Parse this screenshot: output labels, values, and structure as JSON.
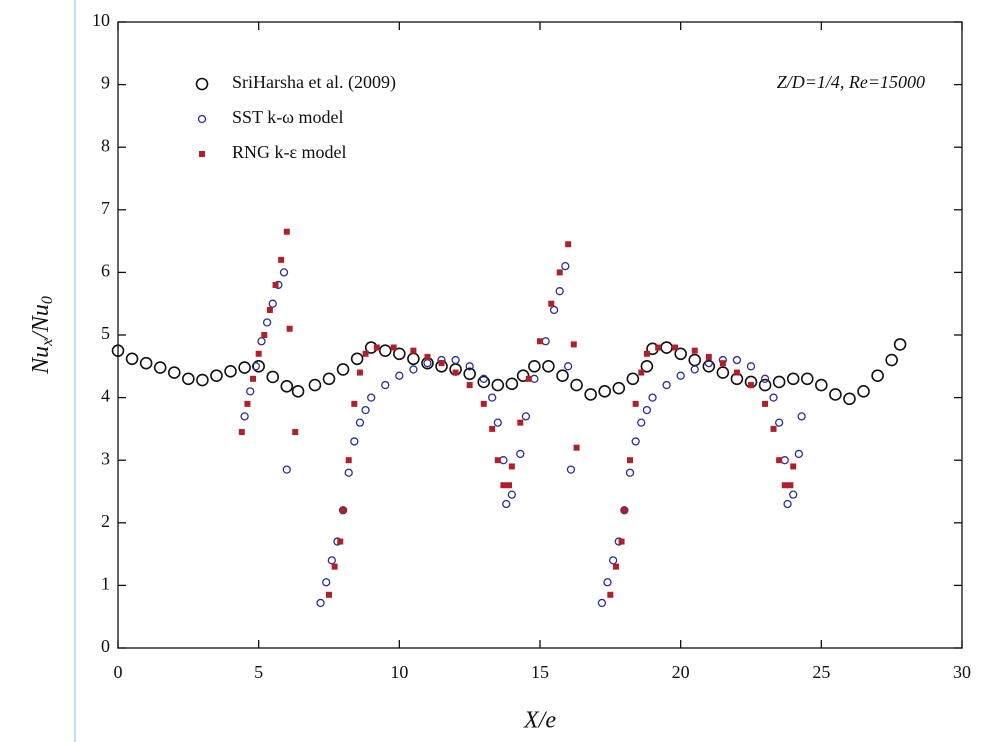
{
  "chart_data": {
    "type": "scatter",
    "annotation": "Z/D=1/4, Re=15000",
    "xlabel": "X/e",
    "ylabel_parts": [
      "Nu",
      "x",
      "/Nu",
      "0"
    ],
    "xlim": [
      0,
      30
    ],
    "ylim": [
      0,
      10
    ],
    "xticks": [
      0,
      5,
      10,
      15,
      20,
      25,
      30
    ],
    "yticks": [
      0,
      1,
      2,
      3,
      4,
      5,
      6,
      7,
      8,
      9,
      10
    ],
    "series": [
      {
        "name": "SriHarsha et al. (2009)",
        "color": "#111111",
        "marker": "circle",
        "x": [
          0,
          0.5,
          1,
          1.5,
          2,
          2.5,
          3,
          3.5,
          4,
          4.5,
          5,
          5.5,
          6,
          6.4,
          7,
          7.5,
          8,
          8.5,
          9,
          9.5,
          10,
          10.5,
          11,
          11.5,
          12,
          12.5,
          13,
          13.5,
          14,
          14.4,
          14.8,
          15.3,
          15.8,
          16.3,
          16.8,
          17.3,
          17.8,
          18.3,
          18.8,
          19,
          19.5,
          20,
          20.5,
          21,
          21.5,
          22,
          22.5,
          23,
          23.5,
          24,
          24.5,
          25,
          25.5,
          26,
          26.5,
          27,
          27.5,
          27.8
        ],
        "values": [
          4.75,
          4.62,
          4.55,
          4.48,
          4.4,
          4.3,
          4.28,
          4.35,
          4.42,
          4.48,
          4.5,
          4.33,
          4.18,
          4.1,
          4.2,
          4.3,
          4.45,
          4.62,
          4.8,
          4.75,
          4.7,
          4.62,
          4.55,
          4.5,
          4.45,
          4.38,
          4.25,
          4.2,
          4.22,
          4.35,
          4.5,
          4.5,
          4.35,
          4.2,
          4.05,
          4.1,
          4.15,
          4.3,
          4.5,
          4.78,
          4.8,
          4.7,
          4.6,
          4.5,
          4.4,
          4.3,
          4.25,
          4.2,
          4.25,
          4.3,
          4.3,
          4.2,
          4.05,
          3.98,
          4.1,
          4.35,
          4.6,
          4.85
        ]
      },
      {
        "name": "SST k-ω  model",
        "color": "#2b2f8f",
        "marker": "small-circle",
        "x": [
          4.5,
          4.7,
          4.9,
          5.1,
          5.3,
          5.5,
          5.7,
          5.9,
          6.0,
          7.2,
          7.4,
          7.6,
          7.8,
          8.0,
          8.2,
          8.4,
          8.6,
          8.8,
          9.0,
          9.5,
          10,
          10.5,
          11,
          11.5,
          12,
          12.5,
          13,
          13.3,
          13.5,
          13.7,
          13.8,
          14.0,
          14.3,
          14.5,
          14.8,
          15.2,
          15.5,
          15.7,
          15.9,
          16.0,
          16.1,
          17.2,
          17.4,
          17.6,
          17.8,
          18.0,
          18.2,
          18.4,
          18.6,
          18.8,
          19.0,
          19.5,
          20,
          20.5,
          21,
          21.5,
          22,
          22.5,
          23,
          23.3,
          23.5,
          23.7,
          23.8,
          24.0,
          24.2,
          24.3
        ],
        "values": [
          3.7,
          4.1,
          4.5,
          4.9,
          5.2,
          5.5,
          5.8,
          6.0,
          2.85,
          0.72,
          1.05,
          1.4,
          1.7,
          2.2,
          2.8,
          3.3,
          3.6,
          3.8,
          4.0,
          4.2,
          4.35,
          4.45,
          4.55,
          4.6,
          4.6,
          4.5,
          4.3,
          4.0,
          3.6,
          3.0,
          2.3,
          2.45,
          3.1,
          3.7,
          4.3,
          4.9,
          5.4,
          5.7,
          6.1,
          4.5,
          2.85,
          0.72,
          1.05,
          1.4,
          1.7,
          2.2,
          2.8,
          3.3,
          3.6,
          3.8,
          4.0,
          4.2,
          4.35,
          4.45,
          4.55,
          4.6,
          4.6,
          4.5,
          4.3,
          4.0,
          3.6,
          3.0,
          2.3,
          2.45,
          3.1,
          3.7
        ]
      },
      {
        "name": "RNG k-ε model",
        "color": "#b0202a",
        "marker": "square",
        "x": [
          4.4,
          4.6,
          4.8,
          5.0,
          5.2,
          5.4,
          5.6,
          5.8,
          6.0,
          6.1,
          6.3,
          7.5,
          7.7,
          7.9,
          8.0,
          8.2,
          8.4,
          8.6,
          8.8,
          9.2,
          9.8,
          10.5,
          11,
          11.5,
          12,
          12.5,
          13,
          13.3,
          13.5,
          13.7,
          13.9,
          14.0,
          14.3,
          14.6,
          15.0,
          15.4,
          15.7,
          16.0,
          16.2,
          16.3,
          17.5,
          17.7,
          17.9,
          18.0,
          18.2,
          18.4,
          18.6,
          18.8,
          19.2,
          19.8,
          20.5,
          21,
          21.5,
          22,
          22.5,
          23,
          23.3,
          23.5,
          23.7,
          23.9,
          24.0
        ],
        "values": [
          3.45,
          3.9,
          4.3,
          4.7,
          5.0,
          5.4,
          5.8,
          6.2,
          6.65,
          5.1,
          3.45,
          0.85,
          1.3,
          1.7,
          2.2,
          3.0,
          3.9,
          4.4,
          4.7,
          4.8,
          4.8,
          4.75,
          4.65,
          4.55,
          4.4,
          4.2,
          3.9,
          3.5,
          3.0,
          2.6,
          2.6,
          2.9,
          3.6,
          4.3,
          4.9,
          5.5,
          6.0,
          6.45,
          4.85,
          3.2,
          0.85,
          1.3,
          1.7,
          2.2,
          3.0,
          3.9,
          4.4,
          4.7,
          4.8,
          4.8,
          4.75,
          4.65,
          4.55,
          4.4,
          4.2,
          3.9,
          3.5,
          3.0,
          2.6,
          2.6,
          2.9
        ]
      }
    ]
  }
}
